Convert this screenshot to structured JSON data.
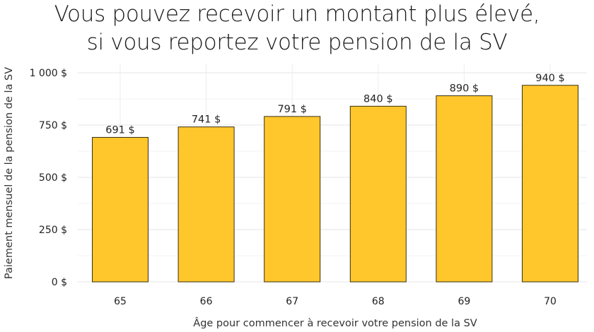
{
  "chart_data": {
    "type": "bar",
    "title_lines": [
      "Vous pouvez recevoir un montant plus élevé,",
      "si vous reportez votre pension de la SV"
    ],
    "xlabel": "Âge pour commencer à recevoir votre pension de la SV",
    "ylabel": "Paiement mensuel de la pension de la SV",
    "categories": [
      "65",
      "66",
      "67",
      "68",
      "69",
      "70"
    ],
    "values": [
      691,
      741,
      791,
      840,
      890,
      940
    ],
    "value_labels": [
      "691 $",
      "741 $",
      "791 $",
      "840 $",
      "890 $",
      "940 $"
    ],
    "ylim": [
      0,
      1000
    ],
    "yticks": [
      0,
      250,
      500,
      750,
      1000
    ],
    "ytick_labels": [
      "0 $",
      "250 $",
      "500 $",
      "750 $",
      "1 000 $"
    ],
    "grid": true,
    "bar_color": "#FFC72C",
    "bar_edge_color": "#3a2f10"
  }
}
